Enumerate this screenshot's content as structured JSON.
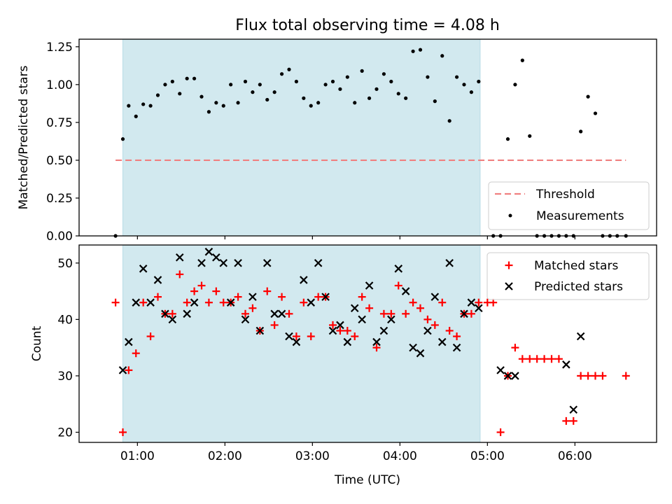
{
  "title": "Flux total observing time = 4.08 h",
  "chart_data": [
    {
      "type": "scatter",
      "panel": "top",
      "ylabel": "Matched/Predicted stars",
      "xlabel": "",
      "ylim": [
        0,
        1.3
      ],
      "yticks": [
        0,
        0.25,
        0.5,
        0.75,
        1.0,
        1.25
      ],
      "yticklabels": [
        "0.00",
        "0.25",
        "0.50",
        "0.75",
        "1.00",
        "1.25"
      ],
      "grid": false,
      "legend_position": "bottom-right",
      "shaded_interval": {
        "start": "00:50",
        "end": "04:55",
        "color": "#d2e9ef"
      },
      "threshold": {
        "name": "Threshold",
        "value": 0.5,
        "x_start": "00:45",
        "x_end": "06:35",
        "color": "#f08080"
      },
      "series": [
        {
          "name": "Measurements",
          "marker": "dot",
          "color": "#000000",
          "points": [
            [
              "00:45",
              0.0
            ],
            [
              "00:50",
              0.64
            ],
            [
              "00:54",
              0.86
            ],
            [
              "00:59",
              0.79
            ],
            [
              "01:04",
              0.87
            ],
            [
              "01:09",
              0.86
            ],
            [
              "01:14",
              0.93
            ],
            [
              "01:19",
              1.0
            ],
            [
              "01:24",
              1.02
            ],
            [
              "01:29",
              0.94
            ],
            [
              "01:34",
              1.04
            ],
            [
              "01:39",
              1.04
            ],
            [
              "01:44",
              0.92
            ],
            [
              "01:49",
              0.82
            ],
            [
              "01:54",
              0.88
            ],
            [
              "01:59",
              0.86
            ],
            [
              "02:04",
              1.0
            ],
            [
              "02:09",
              0.88
            ],
            [
              "02:14",
              1.02
            ],
            [
              "02:19",
              0.95
            ],
            [
              "02:24",
              1.0
            ],
            [
              "02:29",
              0.9
            ],
            [
              "02:34",
              0.95
            ],
            [
              "02:39",
              1.07
            ],
            [
              "02:44",
              1.1
            ],
            [
              "02:49",
              1.02
            ],
            [
              "02:54",
              0.91
            ],
            [
              "02:59",
              0.86
            ],
            [
              "03:04",
              0.88
            ],
            [
              "03:09",
              1.0
            ],
            [
              "03:14",
              1.02
            ],
            [
              "03:19",
              0.97
            ],
            [
              "03:24",
              1.05
            ],
            [
              "03:29",
              0.88
            ],
            [
              "03:34",
              1.09
            ],
            [
              "03:39",
              0.91
            ],
            [
              "03:44",
              0.97
            ],
            [
              "03:49",
              1.07
            ],
            [
              "03:54",
              1.02
            ],
            [
              "03:59",
              0.94
            ],
            [
              "04:04",
              0.91
            ],
            [
              "04:09",
              1.22
            ],
            [
              "04:14",
              1.23
            ],
            [
              "04:19",
              1.05
            ],
            [
              "04:24",
              0.89
            ],
            [
              "04:29",
              1.19
            ],
            [
              "04:34",
              0.76
            ],
            [
              "04:39",
              1.05
            ],
            [
              "04:44",
              1.0
            ],
            [
              "04:49",
              0.95
            ],
            [
              "04:54",
              1.02
            ],
            [
              "05:04",
              0.0
            ],
            [
              "05:09",
              0.0
            ],
            [
              "05:14",
              0.64
            ],
            [
              "05:19",
              1.0
            ],
            [
              "05:24",
              1.16
            ],
            [
              "05:29",
              0.66
            ],
            [
              "05:34",
              0.0
            ],
            [
              "05:39",
              0.0
            ],
            [
              "05:44",
              0.0
            ],
            [
              "05:49",
              0.0
            ],
            [
              "05:54",
              0.0
            ],
            [
              "05:59",
              0.0
            ],
            [
              "06:04",
              0.69
            ],
            [
              "06:09",
              0.92
            ],
            [
              "06:14",
              0.81
            ],
            [
              "06:19",
              0.0
            ],
            [
              "06:24",
              0.0
            ],
            [
              "06:29",
              0.0
            ],
            [
              "06:35",
              0.0
            ]
          ]
        }
      ]
    },
    {
      "type": "scatter",
      "panel": "bottom",
      "ylabel": "Count",
      "xlabel": "Time (UTC)",
      "ylim": [
        18.2,
        53.2
      ],
      "yticks": [
        20,
        30,
        40,
        50
      ],
      "yticklabels": [
        "20",
        "30",
        "40",
        "50"
      ],
      "xlim": [
        "00:20",
        "06:56"
      ],
      "xticks": [
        "01:00",
        "02:00",
        "03:00",
        "04:00",
        "05:00",
        "06:00"
      ],
      "grid": false,
      "legend_position": "top-right",
      "shaded_interval": {
        "start": "00:50",
        "end": "04:55",
        "color": "#d2e9ef"
      },
      "series": [
        {
          "name": "Matched stars",
          "marker": "plus",
          "color": "#ff0000",
          "points": [
            [
              "00:45",
              43
            ],
            [
              "00:50",
              20
            ],
            [
              "00:54",
              31
            ],
            [
              "00:59",
              34
            ],
            [
              "01:04",
              43
            ],
            [
              "01:09",
              37
            ],
            [
              "01:14",
              44
            ],
            [
              "01:19",
              41
            ],
            [
              "01:24",
              41
            ],
            [
              "01:29",
              48
            ],
            [
              "01:34",
              43
            ],
            [
              "01:39",
              45
            ],
            [
              "01:44",
              46
            ],
            [
              "01:49",
              43
            ],
            [
              "01:54",
              45
            ],
            [
              "01:59",
              43
            ],
            [
              "02:04",
              43
            ],
            [
              "02:09",
              44
            ],
            [
              "02:14",
              41
            ],
            [
              "02:19",
              42
            ],
            [
              "02:24",
              38
            ],
            [
              "02:29",
              45
            ],
            [
              "02:34",
              39
            ],
            [
              "02:39",
              44
            ],
            [
              "02:44",
              41
            ],
            [
              "02:49",
              37
            ],
            [
              "02:54",
              43
            ],
            [
              "02:59",
              37
            ],
            [
              "03:04",
              44
            ],
            [
              "03:09",
              44
            ],
            [
              "03:14",
              39
            ],
            [
              "03:19",
              38
            ],
            [
              "03:24",
              38
            ],
            [
              "03:29",
              37
            ],
            [
              "03:34",
              44
            ],
            [
              "03:39",
              42
            ],
            [
              "03:44",
              35
            ],
            [
              "03:49",
              41
            ],
            [
              "03:54",
              41
            ],
            [
              "03:59",
              46
            ],
            [
              "04:04",
              41
            ],
            [
              "04:09",
              43
            ],
            [
              "04:14",
              42
            ],
            [
              "04:19",
              40
            ],
            [
              "04:24",
              39
            ],
            [
              "04:29",
              43
            ],
            [
              "04:34",
              38
            ],
            [
              "04:39",
              37
            ],
            [
              "04:44",
              41
            ],
            [
              "04:49",
              41
            ],
            [
              "04:54",
              43
            ],
            [
              "05:00",
              43
            ],
            [
              "05:04",
              43
            ],
            [
              "05:09",
              20
            ],
            [
              "05:14",
              30
            ],
            [
              "05:19",
              35
            ],
            [
              "05:24",
              33
            ],
            [
              "05:29",
              33
            ],
            [
              "05:34",
              33
            ],
            [
              "05:39",
              33
            ],
            [
              "05:44",
              33
            ],
            [
              "05:49",
              33
            ],
            [
              "05:54",
              22
            ],
            [
              "05:59",
              22
            ],
            [
              "06:04",
              30
            ],
            [
              "06:09",
              30
            ],
            [
              "06:14",
              30
            ],
            [
              "06:19",
              30
            ],
            [
              "06:35",
              30
            ]
          ]
        },
        {
          "name": "Predicted stars",
          "marker": "x",
          "color": "#000000",
          "points": [
            [
              "00:50",
              31
            ],
            [
              "00:54",
              36
            ],
            [
              "00:59",
              43
            ],
            [
              "01:04",
              49
            ],
            [
              "01:09",
              43
            ],
            [
              "01:14",
              47
            ],
            [
              "01:19",
              41
            ],
            [
              "01:24",
              40
            ],
            [
              "01:29",
              51
            ],
            [
              "01:34",
              41
            ],
            [
              "01:39",
              43
            ],
            [
              "01:44",
              50
            ],
            [
              "01:49",
              52
            ],
            [
              "01:54",
              51
            ],
            [
              "01:59",
              50
            ],
            [
              "02:04",
              43
            ],
            [
              "02:09",
              50
            ],
            [
              "02:14",
              40
            ],
            [
              "02:19",
              44
            ],
            [
              "02:24",
              38
            ],
            [
              "02:29",
              50
            ],
            [
              "02:34",
              41
            ],
            [
              "02:39",
              41
            ],
            [
              "02:44",
              37
            ],
            [
              "02:49",
              36
            ],
            [
              "02:54",
              47
            ],
            [
              "02:59",
              43
            ],
            [
              "03:04",
              50
            ],
            [
              "03:09",
              44
            ],
            [
              "03:14",
              38
            ],
            [
              "03:19",
              39
            ],
            [
              "03:24",
              36
            ],
            [
              "03:29",
              42
            ],
            [
              "03:34",
              40
            ],
            [
              "03:39",
              46
            ],
            [
              "03:44",
              36
            ],
            [
              "03:49",
              38
            ],
            [
              "03:54",
              40
            ],
            [
              "03:59",
              49
            ],
            [
              "04:04",
              45
            ],
            [
              "04:09",
              35
            ],
            [
              "04:14",
              34
            ],
            [
              "04:19",
              38
            ],
            [
              "04:24",
              44
            ],
            [
              "04:29",
              36
            ],
            [
              "04:34",
              50
            ],
            [
              "04:39",
              35
            ],
            [
              "04:44",
              41
            ],
            [
              "04:49",
              43
            ],
            [
              "04:54",
              42
            ],
            [
              "05:09",
              31
            ],
            [
              "05:14",
              30
            ],
            [
              "05:19",
              30
            ],
            [
              "05:54",
              32
            ],
            [
              "05:59",
              24
            ],
            [
              "06:04",
              37
            ]
          ]
        }
      ]
    }
  ]
}
